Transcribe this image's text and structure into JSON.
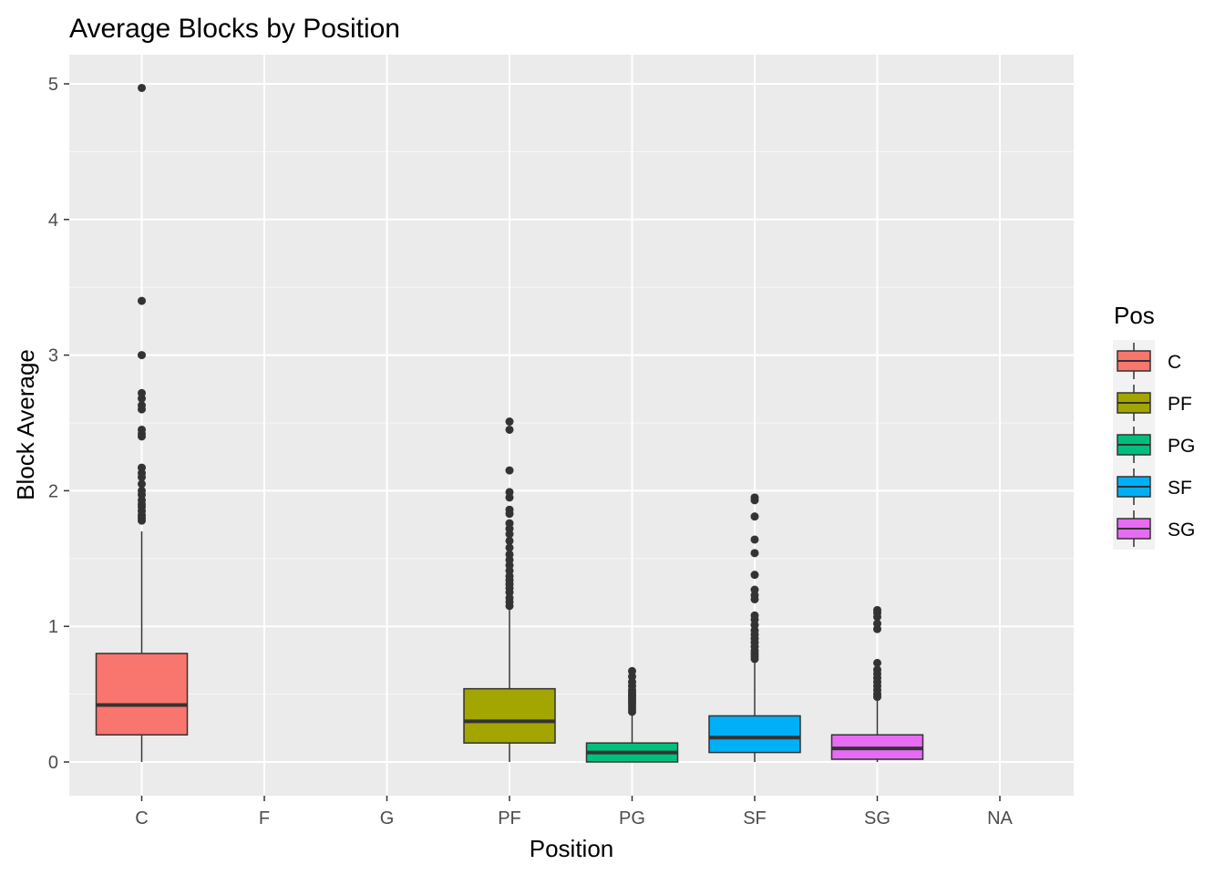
{
  "chart_data": {
    "type": "boxplot",
    "title": "Average Blocks by Position",
    "xlabel": "Position",
    "ylabel": "Block Average",
    "categories": [
      "C",
      "F",
      "G",
      "PF",
      "PG",
      "SF",
      "SG",
      "NA"
    ],
    "y_ticks": [
      0,
      1,
      2,
      3,
      4,
      5
    ],
    "ylim": [
      -0.25,
      5.2
    ],
    "grid": true,
    "legend": {
      "title": "Pos",
      "placement": "right",
      "entries": [
        {
          "label": "C",
          "color": "#F8766D"
        },
        {
          "label": "PF",
          "color": "#A3A500"
        },
        {
          "label": "PG",
          "color": "#00BF7D"
        },
        {
          "label": "SF",
          "color": "#00B0F6"
        },
        {
          "label": "SG",
          "color": "#E76BF3"
        }
      ]
    },
    "series": [
      {
        "category": "C",
        "color": "#F8766D",
        "box": {
          "lower_whisker": 0,
          "q1": 0.2,
          "median": 0.42,
          "q3": 0.8,
          "upper_whisker": 1.7
        },
        "outliers": [
          1.78,
          1.8,
          1.82,
          1.85,
          1.88,
          1.9,
          1.93,
          1.97,
          2.0,
          2.05,
          2.1,
          2.13,
          2.17,
          2.4,
          2.42,
          2.45,
          2.6,
          2.63,
          2.68,
          2.72,
          3.0,
          3.4,
          4.97
        ]
      },
      {
        "category": "PF",
        "color": "#A3A500",
        "box": {
          "lower_whisker": 0,
          "q1": 0.14,
          "median": 0.3,
          "q3": 0.54,
          "upper_whisker": 1.12
        },
        "outliers": [
          1.15,
          1.18,
          1.21,
          1.25,
          1.28,
          1.31,
          1.34,
          1.37,
          1.41,
          1.45,
          1.49,
          1.53,
          1.58,
          1.63,
          1.68,
          1.72,
          1.76,
          1.83,
          1.86,
          1.95,
          1.99,
          2.15,
          2.45,
          2.51
        ]
      },
      {
        "category": "PG",
        "color": "#00BF7D",
        "box": {
          "lower_whisker": 0,
          "q1": 0.0,
          "median": 0.07,
          "q3": 0.14,
          "upper_whisker": 0.34
        },
        "outliers": [
          0.37,
          0.39,
          0.41,
          0.43,
          0.45,
          0.47,
          0.49,
          0.51,
          0.53,
          0.56,
          0.59,
          0.63,
          0.67
        ]
      },
      {
        "category": "SF",
        "color": "#00B0F6",
        "box": {
          "lower_whisker": 0,
          "q1": 0.07,
          "median": 0.18,
          "q3": 0.34,
          "upper_whisker": 0.74
        },
        "outliers": [
          0.76,
          0.78,
          0.8,
          0.82,
          0.85,
          0.88,
          0.91,
          0.94,
          0.97,
          1.01,
          1.05,
          1.08,
          1.2,
          1.23,
          1.27,
          1.38,
          1.54,
          1.64,
          1.81,
          1.93,
          1.95
        ]
      },
      {
        "category": "SG",
        "color": "#E76BF3",
        "box": {
          "lower_whisker": 0,
          "q1": 0.02,
          "median": 0.1,
          "q3": 0.2,
          "upper_whisker": 0.45
        },
        "outliers": [
          0.48,
          0.5,
          0.53,
          0.56,
          0.59,
          0.62,
          0.65,
          0.68,
          0.73,
          0.98,
          1.02,
          1.07,
          1.1,
          1.12
        ]
      }
    ]
  }
}
